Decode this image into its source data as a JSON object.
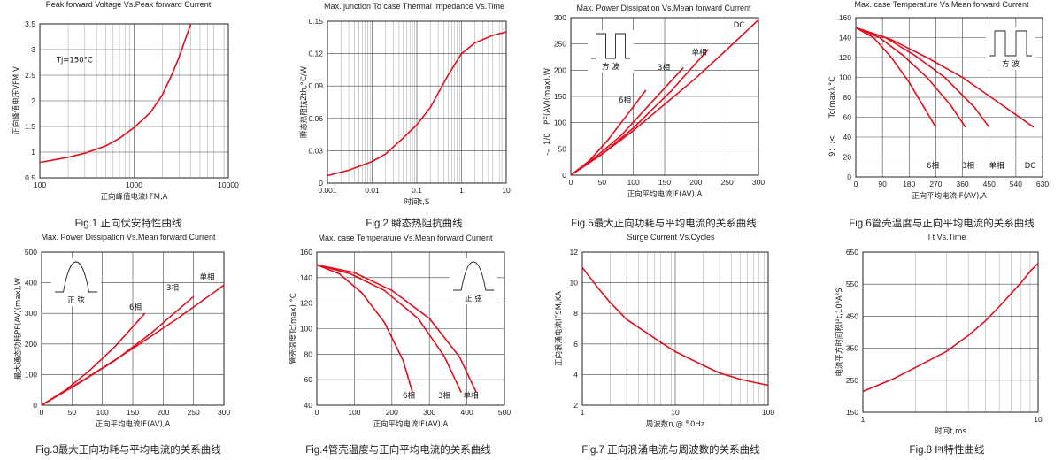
{
  "chart_data": [
    {
      "id": "fig1",
      "type": "line",
      "title": "Peak forward Voltage Vs.Peak forward Current",
      "caption": "Fig.1 正向伏安特性曲线",
      "xlabel": "正向峰值电流I FM,A",
      "ylabel": "正向峰值电压VFM,V",
      "xscale": "log",
      "xlim": [
        100,
        10000
      ],
      "ylim": [
        0.5,
        3.5
      ],
      "xticks": [
        100,
        1000,
        10000
      ],
      "xtick_labels": [
        "100",
        "1000",
        "10000"
      ],
      "yticks": [
        0.5,
        1,
        1.5,
        2,
        2.5,
        3,
        3.5
      ],
      "ytick_labels": [
        "0.5",
        "1",
        "1.5",
        "2",
        "2.5",
        "3",
        "3.5"
      ],
      "annotations": [
        {
          "text": "Tj=150°C",
          "x": 150,
          "y": 2.75
        }
      ],
      "series": [
        {
          "x": [
            100,
            200,
            300,
            500,
            700,
            1000,
            1500,
            2000,
            2500,
            3000,
            3500,
            4000
          ],
          "y": [
            0.8,
            0.9,
            0.98,
            1.12,
            1.27,
            1.48,
            1.78,
            2.12,
            2.5,
            2.85,
            3.2,
            3.5
          ]
        }
      ]
    },
    {
      "id": "fig2",
      "type": "line",
      "title": "Max. junction To case Thermai Impedance Vs.Time",
      "caption": "Fig.2 瞬态热阻抗曲线",
      "xlabel": "时间t,S",
      "ylabel": "瞬态热阻抗Zth,°C/W",
      "xscale": "log",
      "xlim": [
        0.001,
        10
      ],
      "ylim": [
        0,
        0.15
      ],
      "xticks": [
        0.001,
        0.01,
        0.1,
        1,
        10
      ],
      "xtick_labels": [
        "0.001",
        "0.01",
        "0.1",
        "1",
        "10"
      ],
      "yticks": [
        0,
        0.03,
        0.06,
        0.09,
        0.12,
        0.15
      ],
      "ytick_labels": [
        "0",
        "0.03",
        "0.06",
        "0.09",
        "0.12",
        "0.15"
      ],
      "series": [
        {
          "x": [
            0.001,
            0.003,
            0.01,
            0.02,
            0.05,
            0.1,
            0.2,
            0.5,
            1,
            2,
            5,
            10
          ],
          "y": [
            0.007,
            0.012,
            0.02,
            0.027,
            0.042,
            0.054,
            0.07,
            0.1,
            0.12,
            0.13,
            0.137,
            0.14
          ]
        }
      ]
    },
    {
      "id": "fig5",
      "type": "line",
      "title": "Max. Power Dissipation Vs.Mean forward Current",
      "caption": "Fig.5最大正向功耗与平均电流的关系曲线",
      "xlabel": "正向平均电流IF(AV),A",
      "ylabel": "PF(AV)(max),W",
      "xlim": [
        0,
        300
      ],
      "ylim": [
        0,
        300
      ],
      "xticks": [
        0,
        50,
        100,
        150,
        200,
        250,
        300
      ],
      "xtick_labels": [
        "0",
        "50",
        "100",
        "150",
        "200",
        "250",
        "300"
      ],
      "yticks": [
        0,
        50,
        100,
        150,
        200,
        250,
        300
      ],
      "ytick_labels": [
        "0",
        "50",
        "100",
        "150",
        "200",
        "250",
        "300"
      ],
      "ylabel_extra": "-。1/0",
      "inset": {
        "shape": "square-wave",
        "label": "方 波"
      },
      "series": [
        {
          "name": "6相",
          "x": [
            0,
            30,
            60,
            90,
            120
          ],
          "y": [
            0,
            28,
            68,
            115,
            162
          ]
        },
        {
          "name": "3相",
          "x": [
            0,
            40,
            80,
            130,
            180
          ],
          "y": [
            0,
            35,
            75,
            140,
            205
          ]
        },
        {
          "name": "单相",
          "x": [
            0,
            50,
            100,
            160,
            220
          ],
          "y": [
            0,
            40,
            90,
            160,
            240
          ]
        },
        {
          "name": "DC",
          "x": [
            0,
            50,
            100,
            150,
            200,
            250,
            300
          ],
          "y": [
            0,
            40,
            85,
            135,
            185,
            240,
            296
          ]
        }
      ]
    },
    {
      "id": "fig6",
      "type": "line",
      "title": "Max. case Temperature Vs.Mean forward Current",
      "caption": "Fig.6管壳温度与正向平均电流的关系曲线",
      "xlabel": "正向平均电流IF(AV),A",
      "ylabel": "Tc(max),°C",
      "ylabel_extra": "9：:<",
      "xlim": [
        0,
        630
      ],
      "ylim": [
        0,
        160
      ],
      "xticks": [
        0,
        90,
        180,
        270,
        360,
        450,
        540,
        630
      ],
      "xtick_labels": [
        "0",
        "90",
        "180",
        "270",
        "360",
        "450",
        "540",
        "630"
      ],
      "yticks": [
        0,
        20,
        40,
        60,
        80,
        100,
        120,
        140,
        160
      ],
      "ytick_labels": [
        "0",
        "20",
        "40",
        "60",
        "80",
        "100",
        "120",
        "140",
        "160"
      ],
      "inset": {
        "shape": "square-wave",
        "label": "方 波"
      },
      "series": [
        {
          "name": "6相",
          "x": [
            0,
            60,
            120,
            180,
            230,
            270
          ],
          "y": [
            150,
            140,
            120,
            95,
            70,
            50
          ]
        },
        {
          "name": "3相",
          "x": [
            0,
            80,
            160,
            240,
            320,
            370
          ],
          "y": [
            150,
            140,
            122,
            100,
            72,
            50
          ]
        },
        {
          "name": "单相",
          "x": [
            0,
            100,
            200,
            300,
            400,
            450
          ],
          "y": [
            150,
            140,
            122,
            100,
            70,
            50
          ]
        },
        {
          "name": "DC",
          "x": [
            0,
            120,
            240,
            360,
            480,
            600
          ],
          "y": [
            150,
            138,
            120,
            100,
            75,
            50
          ]
        }
      ]
    },
    {
      "id": "fig3",
      "type": "line",
      "title": "Max. Power Dissipation Vs.Mean forward Current",
      "caption": "Fig.3最大正向功耗与平均电流的关系曲线",
      "xlabel": "正向平均电流IF(AV),A",
      "ylabel": "最大通态功耗PF(AV)(max),W",
      "xlim": [
        0,
        300
      ],
      "ylim": [
        0,
        500
      ],
      "xticks": [
        0,
        50,
        100,
        150,
        200,
        250,
        300
      ],
      "xtick_labels": [
        "0",
        "50",
        "100",
        "150",
        "200",
        "250",
        "300"
      ],
      "yticks": [
        0,
        100,
        200,
        300,
        400,
        500
      ],
      "ytick_labels": [
        "0",
        "100",
        "200",
        "300",
        "400",
        "500"
      ],
      "inset": {
        "shape": "half-sine",
        "label": "正  弦"
      },
      "series": [
        {
          "name": "6相",
          "x": [
            0,
            40,
            80,
            120,
            170
          ],
          "y": [
            0,
            50,
            115,
            190,
            300
          ]
        },
        {
          "name": "3相",
          "x": [
            0,
            60,
            120,
            180,
            250
          ],
          "y": [
            0,
            70,
            145,
            235,
            355
          ]
        },
        {
          "name": "单相",
          "x": [
            0,
            75,
            150,
            225,
            300
          ],
          "y": [
            0,
            90,
            185,
            285,
            392
          ]
        }
      ]
    },
    {
      "id": "fig4",
      "type": "line",
      "title": "Max. case Temperature Vs.Mean forward Current",
      "caption": "Fig.4管壳温度与正向平均电流的关系曲线",
      "xlabel": "正向平均电流IF(AV),A",
      "ylabel": "管壳温度Tc(max),°C",
      "xlim": [
        0,
        500
      ],
      "ylim": [
        40,
        160
      ],
      "xticks": [
        0,
        100,
        200,
        300,
        400,
        500
      ],
      "xtick_labels": [
        "0",
        "100",
        "200",
        "300",
        "400",
        "500"
      ],
      "yticks": [
        40,
        60,
        80,
        100,
        120,
        140,
        160
      ],
      "ytick_labels": [
        "40",
        "60",
        "80",
        "100",
        "120",
        "140",
        "160"
      ],
      "inset": {
        "shape": "half-sine",
        "label": "正  弦"
      },
      "series": [
        {
          "name": "6相",
          "x": [
            0,
            60,
            120,
            180,
            230,
            255
          ],
          "y": [
            150,
            143,
            128,
            105,
            75,
            50
          ]
        },
        {
          "name": "3相",
          "x": [
            0,
            90,
            180,
            270,
            340,
            385
          ],
          "y": [
            150,
            143,
            130,
            108,
            78,
            50
          ]
        },
        {
          "name": "单相",
          "x": [
            0,
            100,
            200,
            300,
            380,
            425
          ],
          "y": [
            150,
            144,
            130,
            108,
            78,
            50
          ]
        }
      ]
    },
    {
      "id": "fig7",
      "type": "line",
      "title": "Surge Current Vs.Cycles",
      "caption": "Fig.7 正向浪涌电流与周波数的关系曲线",
      "xlabel": "周波数n,@ 50Hz",
      "ylabel": "正向浪涌电流IFSM,KA",
      "xscale": "log",
      "xlim": [
        1,
        100
      ],
      "ylim": [
        2,
        12
      ],
      "xticks": [
        1,
        10,
        100
      ],
      "xtick_labels": [
        "1",
        "10",
        "100"
      ],
      "yticks": [
        2,
        4,
        6,
        8,
        10,
        12
      ],
      "ytick_labels": [
        "2",
        "4",
        "6",
        "8",
        "10",
        "12"
      ],
      "series": [
        {
          "x": [
            1,
            1.5,
            2,
            3,
            5,
            7,
            10,
            20,
            30,
            50,
            70,
            100
          ],
          "y": [
            11,
            9.6,
            8.7,
            7.6,
            6.7,
            6.1,
            5.5,
            4.6,
            4.1,
            3.7,
            3.5,
            3.3
          ]
        }
      ]
    },
    {
      "id": "fig8",
      "type": "line",
      "title": "I t Vs.Time",
      "caption": "Fig.8 I²t特性曲线",
      "xlabel": "时间t,ms",
      "ylabel": "电流平方时间积I²t,10³A²S",
      "xscale": "log",
      "xlim": [
        1,
        10
      ],
      "ylim": [
        150,
        650
      ],
      "xticks": [
        1,
        10
      ],
      "xtick_labels": [
        "1",
        "10"
      ],
      "yticks": [
        150,
        250,
        350,
        450,
        550,
        650
      ],
      "ytick_labels": [
        "150",
        "250",
        "350",
        "450",
        "550",
        "650"
      ],
      "series": [
        {
          "x": [
            1,
            1.5,
            2,
            3,
            4,
            5,
            6,
            7,
            8,
            9,
            10
          ],
          "y": [
            215,
            255,
            290,
            340,
            390,
            435,
            480,
            520,
            555,
            590,
            615
          ]
        }
      ]
    }
  ]
}
